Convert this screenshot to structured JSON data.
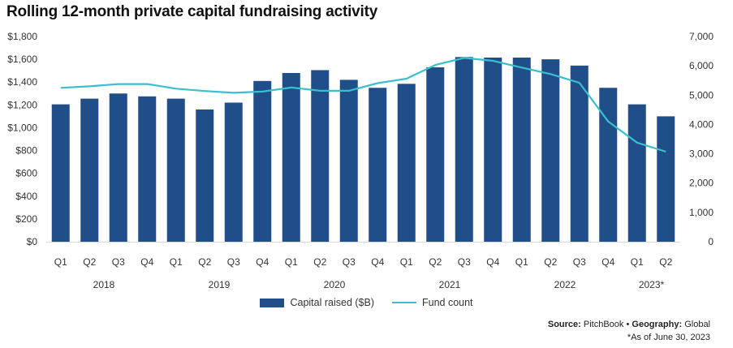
{
  "title": "Rolling 12-month private capital fundraising activity",
  "chart_data": {
    "type": "bar",
    "categories": [
      "Q1",
      "Q2",
      "Q3",
      "Q4",
      "Q1",
      "Q2",
      "Q3",
      "Q4",
      "Q1",
      "Q2",
      "Q3",
      "Q4",
      "Q1",
      "Q2",
      "Q3",
      "Q4",
      "Q1",
      "Q2",
      "Q3",
      "Q4",
      "Q1",
      "Q2"
    ],
    "years": [
      {
        "label": "2018",
        "start": 0,
        "end": 3
      },
      {
        "label": "2019",
        "start": 4,
        "end": 7
      },
      {
        "label": "2020",
        "start": 8,
        "end": 11
      },
      {
        "label": "2021",
        "start": 12,
        "end": 15
      },
      {
        "label": "2022",
        "start": 16,
        "end": 19
      },
      {
        "label": "2023*",
        "start": 20,
        "end": 21
      }
    ],
    "series": [
      {
        "name": "Capital raised ($B)",
        "kind": "bar",
        "axis": "left",
        "color": "#1f4e89",
        "values": [
          1205,
          1255,
          1300,
          1275,
          1255,
          1160,
          1220,
          1410,
          1480,
          1505,
          1420,
          1350,
          1385,
          1530,
          1620,
          1615,
          1615,
          1600,
          1545,
          1350,
          1205,
          1100
        ]
      },
      {
        "name": "Fund count",
        "kind": "line",
        "axis": "right",
        "color": "#3bbfcf",
        "values": [
          5250,
          5300,
          5380,
          5380,
          5220,
          5140,
          5080,
          5120,
          5260,
          5150,
          5150,
          5410,
          5560,
          6030,
          6270,
          6170,
          5940,
          5720,
          5420,
          4100,
          3380,
          3070
        ]
      }
    ],
    "yleft": {
      "lim": [
        0,
        1800
      ],
      "ticks": [
        0,
        200,
        400,
        600,
        800,
        1000,
        1200,
        1400,
        1600,
        1800
      ],
      "tick_labels": [
        "$0",
        "$200",
        "$400",
        "$600",
        "$800",
        "$1,000",
        "$1,200",
        "$1,400",
        "$1,600",
        "$1,800"
      ]
    },
    "yright": {
      "lim": [
        0,
        7000
      ],
      "ticks": [
        0,
        1000,
        2000,
        3000,
        4000,
        5000,
        6000,
        7000
      ],
      "tick_labels": [
        "0",
        "1,000",
        "2,000",
        "3,000",
        "4,000",
        "5,000",
        "6,000",
        "7,000"
      ]
    },
    "grid": false,
    "legend_position": "bottom-center"
  },
  "legend": {
    "bar_label": "Capital raised ($B)",
    "line_label": "Fund count"
  },
  "source": {
    "source_label": "Source:",
    "source_value": "PitchBook",
    "separator": "•",
    "geo_label": "Geography:",
    "geo_value": "Global"
  },
  "footnote": "*As of June 30, 2023"
}
